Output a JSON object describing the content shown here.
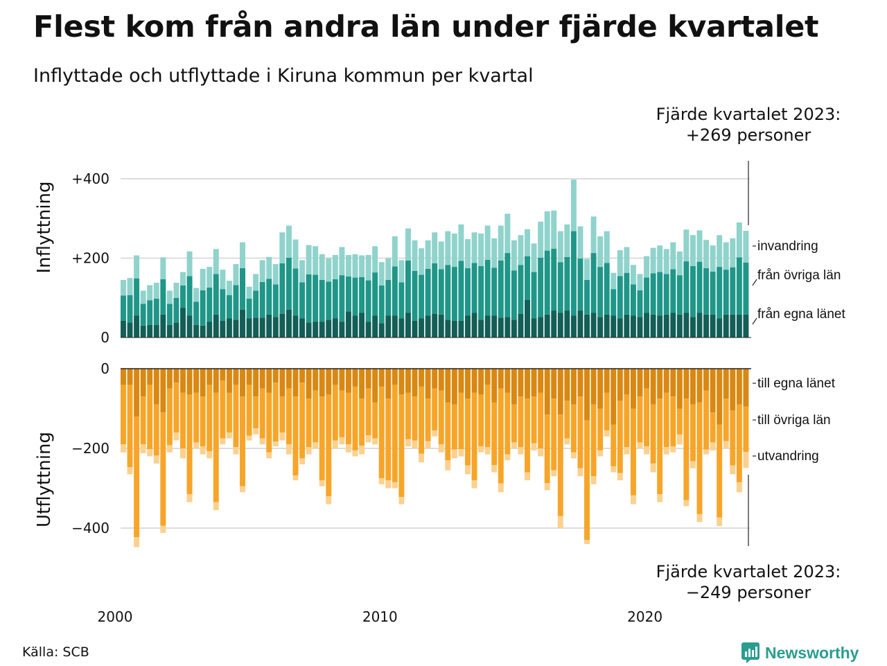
{
  "header": {
    "title": "Flest kom från andra län under fjärde kvartalet",
    "subtitle": "Inflyttade och utflyttade i Kiruna kommun per kvartal"
  },
  "callouts": {
    "top_line1": "Fjärde kvartalet 2023:",
    "top_line2": "+269 personer",
    "bottom_line1": "Fjärde kvartalet 2023:",
    "bottom_line2": "−249 personer"
  },
  "footer": {
    "source": "Källa: SCB",
    "brand": "Newsworthy"
  },
  "colors": {
    "in_own": "#135e57",
    "in_other": "#1f9688",
    "in_immig": "#8fd3cc",
    "out_own": "#d98812",
    "out_other": "#f7a529",
    "out_emig": "#fbd18f",
    "brand": "#2a9d8f"
  },
  "chart_data": [
    {
      "type": "bar",
      "stacked": true,
      "title": "",
      "ylabel": "Inflyttning",
      "ylim": [
        0,
        400
      ],
      "yticks": [
        {
          "value": 0,
          "label": "0"
        },
        {
          "value": 200,
          "label": "+200"
        },
        {
          "value": 400,
          "label": "+400"
        }
      ],
      "xticks": [
        {
          "value": 2000,
          "label": "2000"
        },
        {
          "value": 2010,
          "label": "2010"
        },
        {
          "value": 2020,
          "label": "2020"
        }
      ],
      "x_start": "2000 Q1",
      "x_end": "2023 Q4",
      "series_names": [
        "från egna länet",
        "från övriga län",
        "invandring"
      ],
      "totals": [
        145,
        150,
        207,
        118,
        132,
        138,
        202,
        118,
        138,
        165,
        217,
        125,
        173,
        178,
        223,
        171,
        143,
        185,
        240,
        128,
        160,
        195,
        203,
        185,
        265,
        282,
        247,
        195,
        233,
        230,
        210,
        200,
        208,
        228,
        208,
        210,
        207,
        208,
        230,
        190,
        200,
        255,
        195,
        275,
        245,
        225,
        245,
        265,
        242,
        268,
        262,
        285,
        248,
        265,
        262,
        282,
        250,
        282,
        312,
        245,
        258,
        273,
        237,
        292,
        318,
        320,
        268,
        285,
        398,
        280,
        198,
        305,
        255,
        268,
        163,
        220,
        228,
        183,
        160,
        205,
        226,
        232,
        223,
        240,
        217,
        272,
        258,
        270,
        246,
        232,
        258,
        240,
        250,
        290,
        269
      ],
      "egna": [
        42,
        38,
        55,
        30,
        32,
        32,
        58,
        32,
        38,
        75,
        55,
        32,
        30,
        40,
        58,
        42,
        48,
        45,
        70,
        48,
        50,
        50,
        58,
        52,
        60,
        70,
        55,
        48,
        38,
        40,
        40,
        45,
        48,
        40,
        66,
        55,
        62,
        40,
        55,
        36,
        55,
        55,
        48,
        62,
        42,
        48,
        55,
        60,
        58,
        45,
        42,
        42,
        55,
        62,
        45,
        55,
        55,
        50,
        52,
        45,
        60,
        95,
        48,
        52,
        58,
        68,
        62,
        68,
        55,
        68,
        58,
        62,
        52,
        58,
        55,
        48,
        58,
        55,
        52,
        62,
        58,
        55,
        58,
        62,
        58,
        62,
        52,
        62,
        58,
        58,
        48,
        58,
        58,
        58,
        58
      ]
    },
    {
      "type": "bar",
      "stacked": true,
      "title": "",
      "ylabel": "Utflyttning",
      "ylim": [
        -450,
        0
      ],
      "yticks": [
        {
          "value": 0,
          "label": "0"
        },
        {
          "value": -200,
          "label": "−200"
        },
        {
          "value": -400,
          "label": "−400"
        }
      ],
      "series_names": [
        "till egna länet",
        "till övriga län",
        "utvandring"
      ],
      "totals": [
        -210,
        -265,
        -448,
        -212,
        -220,
        -238,
        -412,
        -210,
        -180,
        -225,
        -335,
        -200,
        -215,
        -225,
        -355,
        -190,
        -175,
        -215,
        -310,
        -180,
        -165,
        -190,
        -225,
        -195,
        -180,
        -215,
        -280,
        -240,
        -215,
        -200,
        -295,
        -340,
        -200,
        -190,
        -210,
        -220,
        -215,
        -185,
        -190,
        -290,
        -300,
        -300,
        -340,
        -195,
        -200,
        -235,
        -200,
        -170,
        -210,
        -255,
        -225,
        -220,
        -265,
        -300,
        -210,
        -215,
        -260,
        -310,
        -230,
        -200,
        -215,
        -280,
        -205,
        -220,
        -305,
        -270,
        -400,
        -190,
        -225,
        -270,
        -440,
        -290,
        -220,
        -170,
        -260,
        -280,
        -215,
        -340,
        -200,
        -215,
        -260,
        -335,
        -215,
        -210,
        -190,
        -345,
        -250,
        -385,
        -215,
        -205,
        -395,
        -200,
        -265,
        -310,
        -249
      ],
      "egna": [
        -40,
        -40,
        -120,
        -70,
        -40,
        -90,
        -110,
        -50,
        -35,
        -60,
        -65,
        -60,
        -70,
        -40,
        -60,
        -30,
        -60,
        -40,
        -70,
        -40,
        -70,
        -50,
        -60,
        -35,
        -70,
        -50,
        -70,
        -35,
        -75,
        -55,
        -70,
        -65,
        -40,
        -55,
        -60,
        -45,
        -75,
        -50,
        -85,
        -45,
        -75,
        -40,
        -65,
        -60,
        -70,
        -45,
        -75,
        -50,
        -55,
        -85,
        -90,
        -60,
        -75,
        -60,
        -65,
        -40,
        -85,
        -50,
        -60,
        -90,
        -70,
        -75,
        -70,
        -60,
        -115,
        -75,
        -115,
        -80,
        -90,
        -70,
        -130,
        -90,
        -100,
        -60,
        -140,
        -80,
        -65,
        -100,
        -70,
        -50,
        -90,
        -75,
        -60,
        -70,
        -100,
        -75,
        -90,
        -85,
        -55,
        -110,
        -140,
        -75,
        -105,
        -90,
        -95
      ],
      "emig": [
        -20,
        -18,
        -25,
        -22,
        -18,
        -20,
        -18,
        -18,
        -20,
        -25,
        -20,
        -15,
        -20,
        -18,
        -20,
        -15,
        -15,
        -18,
        -15,
        -12,
        -15,
        -15,
        -15,
        -12,
        -20,
        -25,
        -12,
        -15,
        -18,
        -15,
        -15,
        -20,
        -20,
        -18,
        -20,
        -15,
        -22,
        -18,
        -15,
        -15,
        -20,
        -15,
        -18,
        -18,
        -20,
        -22,
        -18,
        -15,
        -20,
        -25,
        -22,
        -18,
        -22,
        -20,
        -15,
        -18,
        -18,
        -22,
        -15,
        -15,
        -18,
        -20,
        -18,
        -20,
        -18,
        -15,
        -30,
        -15,
        -15,
        -20,
        -10,
        -20,
        -15,
        -15,
        -15,
        -18,
        -18,
        -22,
        -15,
        -20,
        -22,
        -20,
        -18,
        -15,
        -25,
        -15,
        -18,
        -20,
        -12,
        -20,
        -22,
        -18,
        -22,
        -25,
        -40
      ]
    }
  ],
  "legend": {
    "in_immig": "invandring",
    "in_other": "från övriga län",
    "in_own": "från egna länet",
    "out_own": "till egna länet",
    "out_other": "till övriga län",
    "out_emig": "utvandring"
  }
}
